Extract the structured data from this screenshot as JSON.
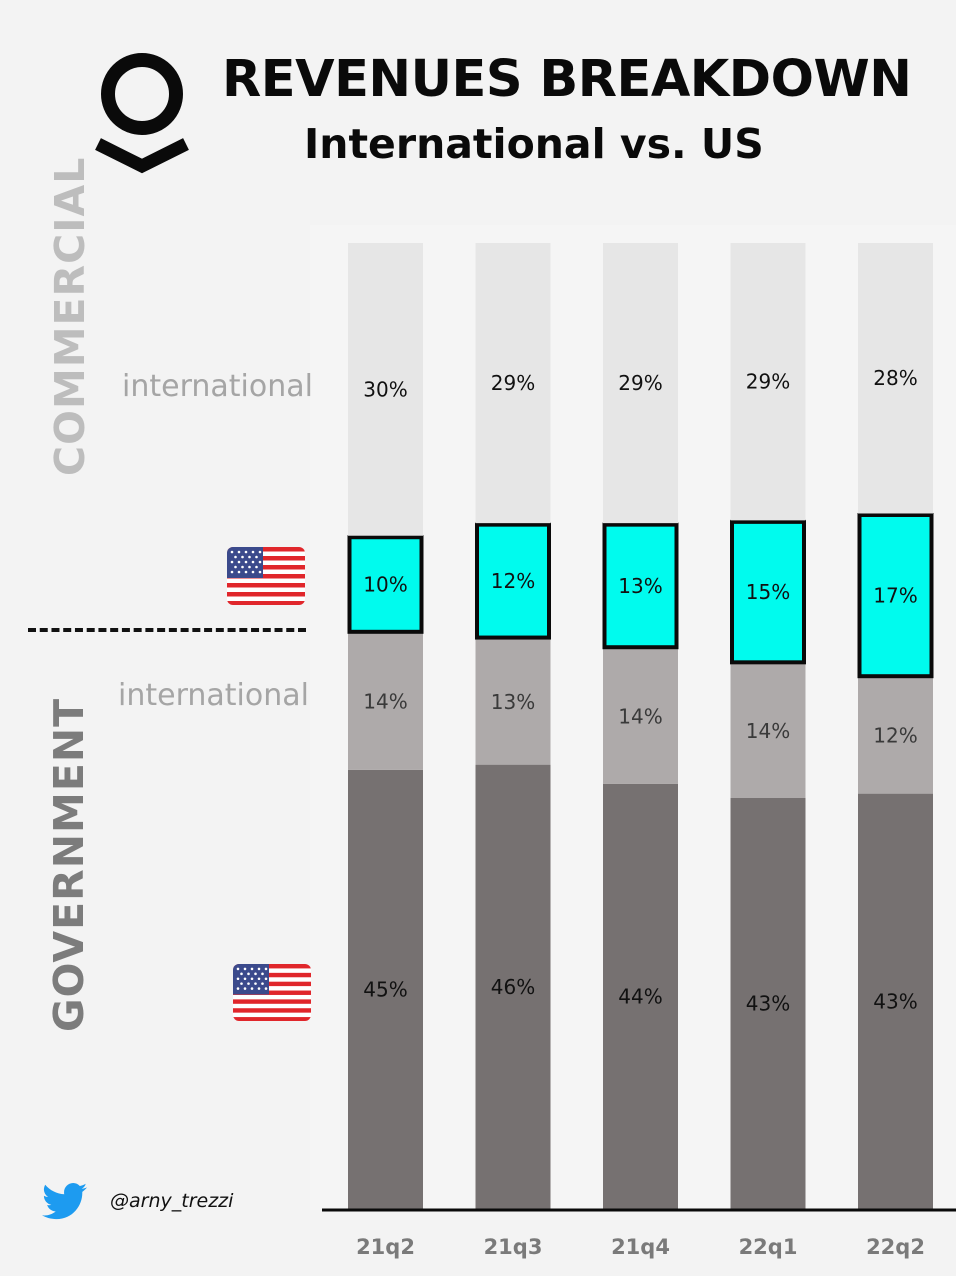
{
  "header": {
    "title": "REVENUES BREAKDOWN",
    "subtitle": "International vs. US"
  },
  "side_labels": {
    "commercial": "COMMERCIAL",
    "government": "GOVERNMENT",
    "international_commercial": "international",
    "international_government": "international"
  },
  "footer": {
    "handle": "@arny_trezzi"
  },
  "icons": {
    "logo": "palantir-logo-icon",
    "flag": "us-flag-icon",
    "twitter": "twitter-bird-icon"
  },
  "colors": {
    "commercial_international": "#e6e6e6",
    "commercial_us": "#00fbee",
    "government_international": "#aeaaaa",
    "government_us": "#767171",
    "twitter": "#1d9bf0"
  },
  "chart_data": {
    "type": "bar",
    "stacked": true,
    "categories": [
      "21q2",
      "21q3",
      "21q4",
      "22q1",
      "22q2"
    ],
    "ylim": [
      0,
      100
    ],
    "series": [
      {
        "values": [
          45,
          46,
          44,
          43,
          43
        ],
        "labels": [
          "45%",
          "46%",
          "44%",
          "43%",
          "43%"
        ]
      },
      {
        "values": [
          14,
          13,
          14,
          14,
          12
        ],
        "labels": [
          "14%",
          "13%",
          "14%",
          "14%",
          "12%"
        ]
      },
      {
        "values": [
          10,
          12,
          13,
          15,
          17
        ],
        "labels": [
          "10%",
          "12%",
          "13%",
          "15%",
          "17%"
        ]
      },
      {
        "values": [
          30,
          29,
          29,
          29,
          28
        ],
        "labels": [
          "30%",
          "29%",
          "29%",
          "29%",
          "28%"
        ]
      }
    ]
  }
}
